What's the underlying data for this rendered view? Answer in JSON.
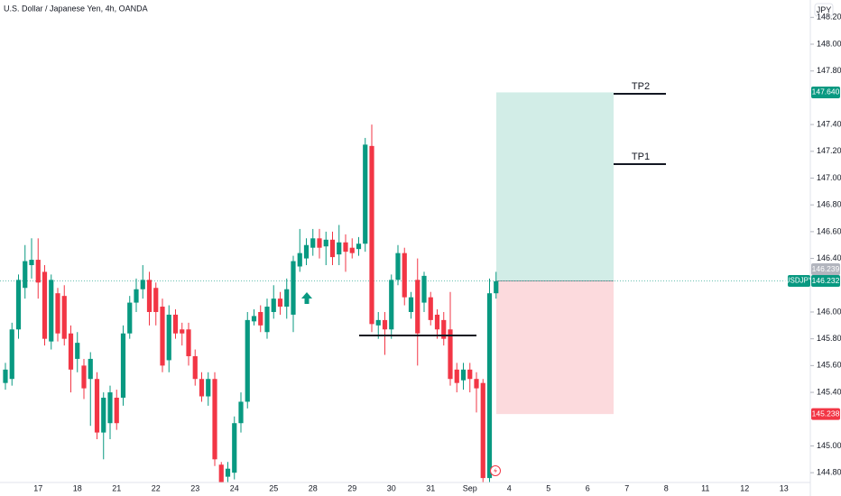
{
  "chart_data": {
    "type": "candlestick",
    "title": "U.S. Dollar / Japanese Yen, 4h, OANDA",
    "currency": "JPY",
    "categories": [
      null,
      null,
      null,
      null,
      null,
      "17",
      null,
      null,
      null,
      null,
      null,
      "18",
      null,
      null,
      null,
      null,
      null,
      "21",
      null,
      null,
      null,
      null,
      null,
      "22",
      null,
      null,
      null,
      null,
      null,
      "23",
      null,
      null,
      null,
      null,
      null,
      "24",
      null,
      null,
      null,
      null,
      null,
      "25",
      null,
      null,
      null,
      null,
      null,
      "28",
      null,
      null,
      null,
      null,
      null,
      "29",
      null,
      null,
      null,
      null,
      null,
      "30",
      null,
      null,
      null,
      null,
      null,
      "31",
      null,
      null,
      null,
      null,
      null,
      "Sep",
      null,
      null,
      null,
      null,
      null,
      "4",
      null,
      null,
      null,
      null,
      null,
      "5",
      null,
      null,
      null,
      null,
      null,
      "6",
      null,
      null,
      null,
      null,
      null,
      "7",
      null,
      null,
      null,
      null,
      null,
      "8",
      null,
      null,
      null,
      null,
      null,
      "11",
      null,
      null,
      null,
      null,
      null,
      "12",
      null,
      null,
      null,
      null,
      null,
      "13",
      null,
      null,
      null
    ],
    "open": [
      145.47,
      145.5,
      145.87,
      146.18,
      146.35,
      146.39,
      146.3,
      145.78,
      146.14,
      146.12,
      145.84,
      145.65,
      145.6,
      145.5,
      145.5,
      145.1,
      145.17,
      145.36,
      145.36,
      145.84,
      146.07,
      146.17,
      146.24,
      146.18,
      146.04,
      145.64,
      145.98,
      145.87,
      145.87,
      145.67,
      145.5,
      145.37,
      145.5,
      144.86,
      144.77,
      144.8,
      145.17,
      145.33,
      145.93,
      146.0,
      145.85,
      146.0,
      146.1,
      146.04,
      145.98,
      146.34,
      146.4,
      146.48,
      146.55,
      146.49,
      146.54,
      146.43,
      146.52,
      146.48,
      146.47,
      146.51,
      147.24,
      145.9,
      145.94,
      145.87,
      146.24,
      146.44,
      146.0,
      146.24,
      146.07,
      146.11,
      145.98,
      145.94,
      145.87,
      145.57,
      145.49,
      145.57,
      145.5,
      145.47,
      144.76,
      146.14,
      null,
      null,
      null,
      null,
      null,
      null,
      null,
      null,
      null,
      null,
      null,
      null,
      null,
      null,
      null,
      null,
      null,
      null,
      null,
      null,
      null,
      null,
      null,
      null,
      null,
      null,
      null,
      null,
      null,
      null,
      null,
      null,
      null,
      null,
      null,
      null,
      null,
      null,
      null,
      null,
      null,
      null,
      null,
      null,
      null,
      null,
      null
    ],
    "high": [
      145.62,
      145.92,
      146.28,
      146.5,
      146.55,
      146.55,
      146.35,
      146.28,
      146.18,
      146.2,
      145.9,
      145.85,
      145.65,
      145.7,
      145.55,
      145.4,
      145.45,
      145.42,
      145.9,
      146.12,
      146.25,
      146.35,
      146.3,
      146.22,
      146.1,
      146.05,
      146.02,
      145.92,
      145.92,
      145.72,
      145.55,
      145.55,
      145.55,
      144.88,
      144.88,
      145.22,
      145.4,
      146.0,
      146.02,
      146.05,
      146.1,
      146.2,
      146.15,
      146.25,
      146.42,
      146.62,
      146.55,
      146.62,
      146.62,
      146.6,
      146.6,
      146.65,
      146.58,
      146.55,
      146.56,
      147.3,
      147.4,
      146.0,
      146.0,
      146.28,
      146.5,
      146.48,
      146.15,
      146.4,
      146.3,
      146.15,
      146.02,
      146.0,
      146.15,
      145.62,
      145.62,
      145.62,
      145.55,
      145.5,
      146.25,
      146.3,
      null,
      null,
      null,
      null,
      null,
      null,
      null,
      null,
      null,
      null,
      null,
      null,
      null,
      null,
      null,
      null,
      null,
      null,
      null,
      null,
      null,
      null,
      null,
      null,
      null,
      null,
      null,
      null,
      null,
      null,
      null,
      null,
      null,
      null,
      null,
      null,
      null,
      null,
      null,
      null,
      null,
      null,
      null,
      null,
      null,
      null,
      null
    ],
    "low": [
      145.42,
      145.45,
      145.8,
      146.1,
      146.25,
      146.1,
      145.75,
      145.72,
      145.78,
      145.75,
      145.4,
      145.55,
      145.35,
      145.15,
      145.05,
      144.9,
      145.05,
      145.12,
      145.3,
      145.8,
      146.0,
      146.1,
      145.9,
      145.9,
      145.55,
      145.55,
      145.8,
      145.75,
      145.6,
      145.45,
      145.33,
      145.3,
      144.85,
      144.73,
      144.73,
      144.75,
      145.1,
      145.28,
      145.9,
      145.85,
      145.8,
      145.95,
      145.98,
      145.95,
      145.85,
      146.3,
      146.35,
      146.42,
      146.4,
      146.35,
      146.35,
      146.35,
      146.3,
      146.4,
      146.42,
      146.45,
      145.85,
      145.8,
      145.68,
      145.8,
      146.2,
      146.05,
      145.95,
      145.6,
      146.0,
      145.9,
      145.8,
      145.75,
      145.45,
      145.4,
      145.42,
      145.4,
      145.25,
      144.73,
      144.73,
      146.1,
      null,
      null,
      null,
      null,
      null,
      null,
      null,
      null,
      null,
      null,
      null,
      null,
      null,
      null,
      null,
      null,
      null,
      null,
      null,
      null,
      null,
      null,
      null,
      null,
      null,
      null,
      null,
      null,
      null,
      null,
      null,
      null,
      null,
      null,
      null,
      null,
      null,
      null,
      null,
      null,
      null,
      null,
      null,
      null,
      null,
      null,
      null
    ],
    "close": [
      145.57,
      145.87,
      146.24,
      146.38,
      146.39,
      146.22,
      145.8,
      146.24,
      145.84,
      145.8,
      145.57,
      145.77,
      145.43,
      145.65,
      145.1,
      145.36,
      145.4,
      145.17,
      145.84,
      146.07,
      146.17,
      146.24,
      146.0,
      146.0,
      145.6,
      145.98,
      145.84,
      145.84,
      145.67,
      145.5,
      145.37,
      145.5,
      144.9,
      144.73,
      144.83,
      145.17,
      145.33,
      145.94,
      145.97,
      145.9,
      146.04,
      146.1,
      146.04,
      146.17,
      146.38,
      146.44,
      146.5,
      146.55,
      146.48,
      146.54,
      146.41,
      146.52,
      146.45,
      146.44,
      146.51,
      147.25,
      145.91,
      145.94,
      145.87,
      146.24,
      146.44,
      146.11,
      146.11,
      145.84,
      146.27,
      145.94,
      145.87,
      145.8,
      145.5,
      145.47,
      145.57,
      145.5,
      145.43,
      144.76,
      146.14,
      146.23,
      null,
      null,
      null,
      null,
      null,
      null,
      null,
      null,
      null,
      null,
      null,
      null,
      null,
      null,
      null,
      null,
      null,
      null,
      null,
      null,
      null,
      null,
      null,
      null,
      null,
      null,
      null,
      null,
      null,
      null,
      null,
      null,
      null,
      null,
      null,
      null,
      null,
      null,
      null,
      null,
      null,
      null,
      null,
      null,
      null,
      null,
      null
    ],
    "up_color": "#089981",
    "down_color": "#f23645",
    "ylim": [
      144.727,
      148.33
    ],
    "yticks": [
      {
        "value": 148.2,
        "label": "148.200"
      },
      {
        "value": 148.0,
        "label": "148.000"
      },
      {
        "value": 147.8,
        "label": "147.800"
      },
      {
        "value": 147.4,
        "label": "147.400"
      },
      {
        "value": 147.2,
        "label": "147.200"
      },
      {
        "value": 147.0,
        "label": "147.000"
      },
      {
        "value": 146.8,
        "label": "146.800"
      },
      {
        "value": 146.6,
        "label": "146.600"
      },
      {
        "value": 146.4,
        "label": "146.400"
      },
      {
        "value": 146.0,
        "label": "146.000"
      },
      {
        "value": 145.8,
        "label": "145.800"
      },
      {
        "value": 145.6,
        "label": "145.600"
      },
      {
        "value": 145.4,
        "label": "145.400"
      },
      {
        "value": 145.0,
        "label": "145.000"
      },
      {
        "value": 144.8,
        "label": "144.800"
      }
    ],
    "grid": false,
    "position": {
      "target": 147.64,
      "entry": 146.232,
      "stop": 145.238,
      "profit_color": "#d2ede7",
      "loss_color": "#fcdadd"
    },
    "tp_lines": [
      {
        "label": "TP1",
        "value": 147.104
      },
      {
        "label": "TP2",
        "value": 147.63
      }
    ],
    "support_line": 145.825,
    "price_tags": [
      {
        "value": 147.64,
        "label": "147.640",
        "color": "#089981"
      },
      {
        "value": 146.239,
        "color": "#b2b5be"
      },
      {
        "name": "USDJPY",
        "value": 146.232,
        "color": "#089981"
      },
      {
        "value": 145.238,
        "label": "145.238",
        "color": "#f23645"
      }
    ]
  }
}
